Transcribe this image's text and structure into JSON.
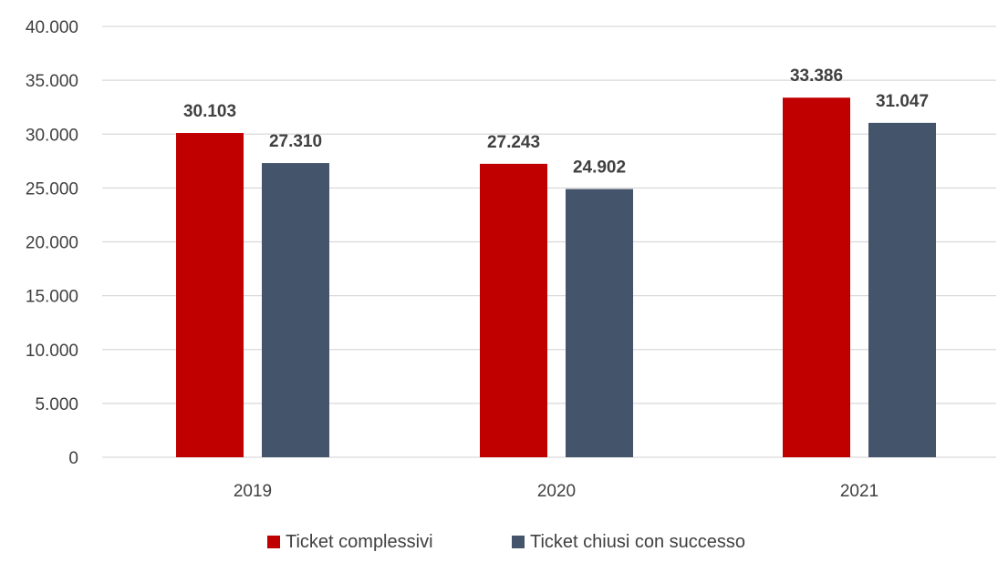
{
  "chart_data": {
    "type": "bar",
    "categories": [
      "2019",
      "2020",
      "2021"
    ],
    "series": [
      {
        "name": "Ticket complessivi",
        "values": [
          30103,
          27243,
          33386
        ],
        "value_labels": [
          "30.103",
          "27.243",
          "33.386"
        ],
        "color": "#c00000"
      },
      {
        "name": "Ticket chiusi con successo",
        "values": [
          27310,
          24902,
          31047
        ],
        "value_labels": [
          "27.310",
          "24.902",
          "31.047"
        ],
        "color": "#44546a"
      }
    ],
    "y_ticks": [
      0,
      5000,
      10000,
      15000,
      20000,
      25000,
      30000,
      35000,
      40000
    ],
    "y_tick_labels": [
      "0",
      "5.000",
      "10.000",
      "15.000",
      "20.000",
      "25.000",
      "30.000",
      "35.000",
      "40.000"
    ],
    "ylim": [
      0,
      40000
    ],
    "title": "",
    "xlabel": "",
    "ylabel": "",
    "grid": true,
    "legend_position": "bottom-center",
    "gridline_color": "#d9d9d9",
    "text_color": "#404040"
  }
}
